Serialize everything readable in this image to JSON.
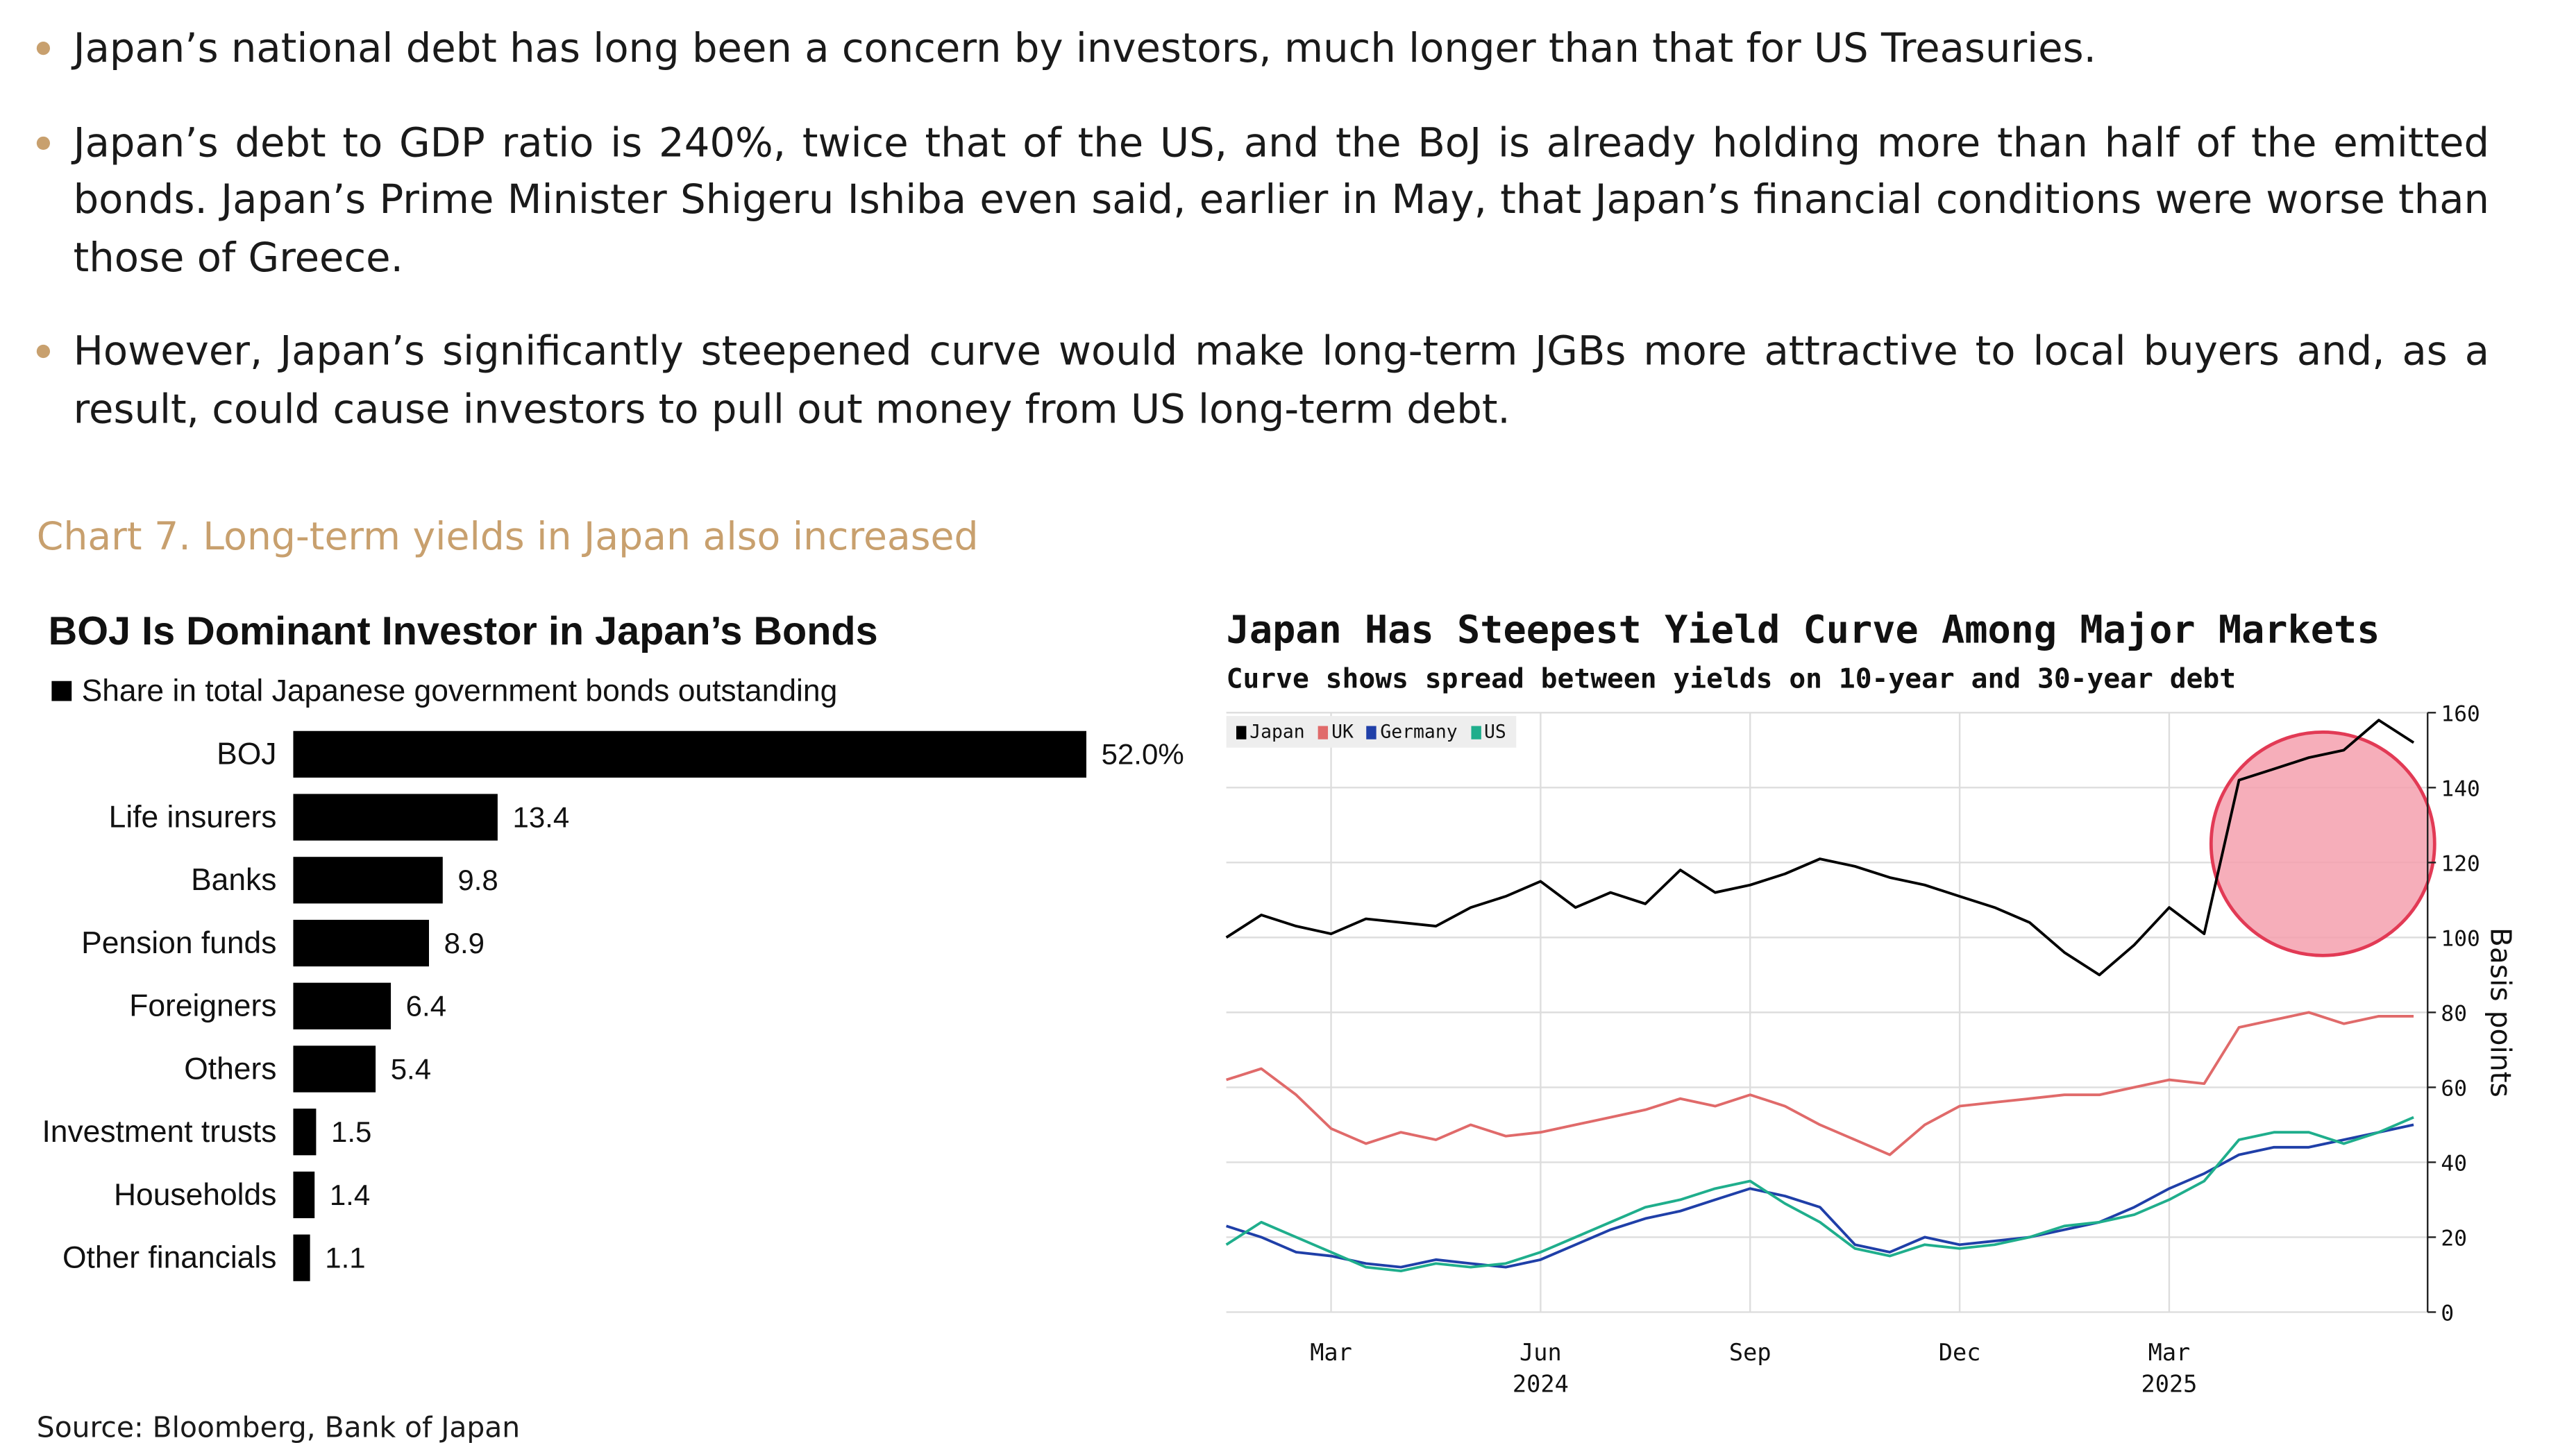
{
  "bullets": [
    "Japan’s national debt has long been a concern by investors, much longer than that for US Treasuries.",
    "Japan’s debt to GDP ratio is 240%, twice that of the US, and the BoJ is already holding more than half of the emitted bonds. Japan’s Prime Minister Shigeru Ishiba even said, earlier in May, that Japan’s financial conditions were worse than those of Greece.",
    "However, Japan’s significantly steepened curve would make long-term JGBs more attractive to local buyers and, as a result, could cause investors to pull out money from US long-term debt."
  ],
  "chart_heading": "Chart 7. Long-term yields in Japan also increased",
  "source": "Source: Bloomberg, Bank of Japan",
  "colors": {
    "accent": "#c8a06e",
    "japan": "#000000",
    "uk": "#e06a6a",
    "germany": "#1f3fa8",
    "us": "#1fae8c",
    "highlight": "#f4a0ae"
  },
  "chart_data": [
    {
      "type": "bar",
      "orientation": "horizontal",
      "title": "BOJ Is Dominant Investor in Japan’s Bonds",
      "legend": "Share in total Japanese government bonds outstanding",
      "categories": [
        "BOJ",
        "Life insurers",
        "Banks",
        "Pension funds",
        "Foreigners",
        "Others",
        "Investment trusts",
        "Households",
        "Other financials"
      ],
      "values": [
        52.0,
        13.4,
        9.8,
        8.9,
        6.4,
        5.4,
        1.5,
        1.4,
        1.1
      ],
      "value_labels": [
        "52.0%",
        "13.4",
        "9.8",
        "8.9",
        "6.4",
        "5.4",
        "1.5",
        "1.4",
        "1.1"
      ],
      "xlim": [
        0,
        52
      ]
    },
    {
      "type": "line",
      "title": "Japan Has Steepest Yield Curve Among Major Markets",
      "subtitle": "Curve shows spread between yields on 10-year and 30-year debt",
      "ylabel": "Basis points",
      "ylim": [
        0,
        160
      ],
      "yticks": [
        0,
        20,
        40,
        60,
        80,
        100,
        120,
        140,
        160
      ],
      "x_range_months": [
        0,
        17.2
      ],
      "xtick_labels": [
        {
          "label": "Mar",
          "month": 1.5
        },
        {
          "label": "Jun",
          "month": 4.5,
          "year": "2024"
        },
        {
          "label": "Sep",
          "month": 7.5
        },
        {
          "label": "Dec",
          "month": 10.5
        },
        {
          "label": "Mar",
          "month": 13.5,
          "year": "2025"
        }
      ],
      "grid": true,
      "annotation": "Highlighted circle around Japan's recent surge",
      "highlight": {
        "center_month": 15.7,
        "center_value": 125,
        "radius_months": 1.6
      },
      "series": [
        {
          "name": "Japan",
          "x": [
            0,
            0.5,
            1,
            1.5,
            2,
            2.5,
            3,
            3.5,
            4,
            4.5,
            5,
            5.5,
            6,
            6.5,
            7,
            7.5,
            8,
            8.5,
            9,
            9.5,
            10,
            10.5,
            11,
            11.5,
            12,
            12.5,
            13,
            13.5,
            14,
            14.5,
            15,
            15.5,
            16,
            16.5,
            17
          ],
          "values": [
            100,
            106,
            103,
            101,
            105,
            104,
            103,
            108,
            111,
            115,
            108,
            112,
            109,
            118,
            112,
            114,
            117,
            121,
            119,
            116,
            114,
            111,
            108,
            104,
            96,
            90,
            98,
            108,
            101,
            142,
            145,
            148,
            150,
            158,
            152
          ]
        },
        {
          "name": "UK",
          "x": [
            0,
            0.5,
            1,
            1.5,
            2,
            2.5,
            3,
            3.5,
            4,
            4.5,
            5,
            5.5,
            6,
            6.5,
            7,
            7.5,
            8,
            8.5,
            9,
            9.5,
            10,
            10.5,
            11,
            11.5,
            12,
            12.5,
            13,
            13.5,
            14,
            14.5,
            15,
            15.5,
            16,
            16.5,
            17
          ],
          "values": [
            62,
            65,
            58,
            49,
            45,
            48,
            46,
            50,
            47,
            48,
            50,
            52,
            54,
            57,
            55,
            58,
            55,
            50,
            46,
            42,
            50,
            55,
            56,
            57,
            58,
            58,
            60,
            62,
            61,
            76,
            78,
            80,
            77,
            79,
            79
          ]
        },
        {
          "name": "Germany",
          "x": [
            0,
            0.5,
            1,
            1.5,
            2,
            2.5,
            3,
            3.5,
            4,
            4.5,
            5,
            5.5,
            6,
            6.5,
            7,
            7.5,
            8,
            8.5,
            9,
            9.5,
            10,
            10.5,
            11,
            11.5,
            12,
            12.5,
            13,
            13.5,
            14,
            14.5,
            15,
            15.5,
            16,
            16.5,
            17
          ],
          "values": [
            23,
            20,
            16,
            15,
            13,
            12,
            14,
            13,
            12,
            14,
            18,
            22,
            25,
            27,
            30,
            33,
            31,
            28,
            18,
            16,
            20,
            18,
            19,
            20,
            22,
            24,
            28,
            33,
            37,
            42,
            44,
            44,
            46,
            48,
            50
          ]
        },
        {
          "name": "US",
          "x": [
            0,
            0.5,
            1,
            1.5,
            2,
            2.5,
            3,
            3.5,
            4,
            4.5,
            5,
            5.5,
            6,
            6.5,
            7,
            7.5,
            8,
            8.5,
            9,
            9.5,
            10,
            10.5,
            11,
            11.5,
            12,
            12.5,
            13,
            13.5,
            14,
            14.5,
            15,
            15.5,
            16,
            16.5,
            17
          ],
          "values": [
            18,
            24,
            20,
            16,
            12,
            11,
            13,
            12,
            13,
            16,
            20,
            24,
            28,
            30,
            33,
            35,
            29,
            24,
            17,
            15,
            18,
            17,
            18,
            20,
            23,
            24,
            26,
            30,
            35,
            46,
            48,
            48,
            45,
            48,
            52
          ]
        }
      ]
    }
  ]
}
